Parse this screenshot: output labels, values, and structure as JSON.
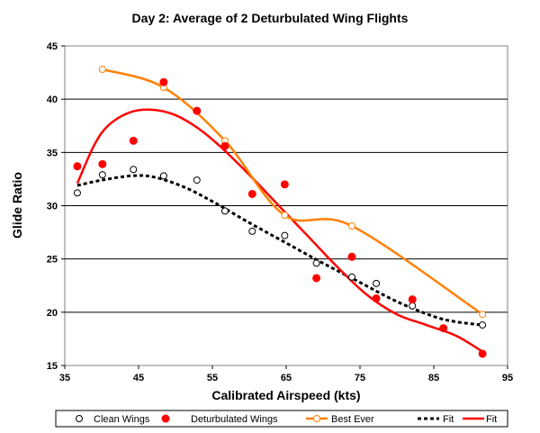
{
  "chart_data": {
    "type": "scatter",
    "title": "Day 2: Average of 2 Deturbulated Wing Flights",
    "xlabel": "Calibrated Airspeed (kts)",
    "ylabel": "Glide Ratio",
    "xlim": [
      35,
      95
    ],
    "ylim": [
      15,
      45
    ],
    "xticks": [
      35,
      45,
      55,
      65,
      75,
      85,
      95
    ],
    "yticks": [
      15,
      20,
      25,
      30,
      35,
      40,
      45
    ],
    "grid": "horizontal",
    "legend_position": "bottom",
    "series": [
      {
        "name": "Clean Wings",
        "kind": "markers",
        "marker": "open-circle",
        "color": "#000000",
        "points": [
          [
            36.7,
            31.2
          ],
          [
            40.1,
            32.9
          ],
          [
            44.3,
            33.4
          ],
          [
            48.4,
            32.8
          ],
          [
            52.9,
            32.4
          ],
          [
            56.7,
            29.5
          ],
          [
            60.4,
            27.6
          ],
          [
            64.8,
            27.2
          ],
          [
            69.1,
            24.6
          ],
          [
            73.9,
            23.3
          ],
          [
            77.2,
            22.7
          ],
          [
            82.1,
            20.6
          ],
          [
            91.6,
            18.8
          ]
        ]
      },
      {
        "name": "Deturbulated Wings",
        "kind": "markers",
        "marker": "filled-circle",
        "color": "#ff0000",
        "points": [
          [
            36.7,
            33.7
          ],
          [
            40.1,
            33.9
          ],
          [
            44.3,
            36.1
          ],
          [
            48.4,
            41.6
          ],
          [
            52.9,
            38.9
          ],
          [
            56.7,
            35.6
          ],
          [
            60.4,
            31.1
          ],
          [
            64.8,
            32.0
          ],
          [
            69.1,
            23.2
          ],
          [
            73.9,
            25.2
          ],
          [
            77.2,
            21.3
          ],
          [
            82.1,
            21.2
          ],
          [
            86.3,
            18.5
          ],
          [
            91.6,
            16.1
          ]
        ]
      },
      {
        "name": "Best Ever",
        "kind": "line-markers",
        "marker": "open-circle",
        "color": "#ff8000",
        "points": [
          [
            40.1,
            42.8
          ],
          [
            48.4,
            41.1
          ],
          [
            56.7,
            36.1
          ],
          [
            64.8,
            29.1
          ],
          [
            73.9,
            28.1
          ],
          [
            91.6,
            19.8
          ]
        ]
      },
      {
        "name": "Fit",
        "kind": "dashed-line",
        "color": "#000000",
        "points": [
          [
            36.7,
            31.9
          ],
          [
            40,
            32.4
          ],
          [
            44,
            32.8
          ],
          [
            47,
            32.7
          ],
          [
            51,
            31.8
          ],
          [
            55,
            30.4
          ],
          [
            60,
            28.4
          ],
          [
            65,
            26.5
          ],
          [
            70,
            24.6
          ],
          [
            75,
            22.8
          ],
          [
            80,
            21.0
          ],
          [
            85,
            19.6
          ],
          [
            88,
            19.1
          ],
          [
            91.6,
            18.8
          ]
        ]
      },
      {
        "name": "Fit",
        "kind": "line",
        "color": "#ff0000",
        "points": [
          [
            36.7,
            32.1
          ],
          [
            39,
            35.7
          ],
          [
            41,
            37.6
          ],
          [
            44,
            38.8
          ],
          [
            47,
            39.0
          ],
          [
            50,
            38.5
          ],
          [
            53,
            37.3
          ],
          [
            56,
            35.6
          ],
          [
            60,
            32.9
          ],
          [
            64,
            30.0
          ],
          [
            68,
            27.1
          ],
          [
            72,
            24.2
          ],
          [
            76,
            21.6
          ],
          [
            80,
            19.8
          ],
          [
            84,
            18.8
          ],
          [
            88,
            17.8
          ],
          [
            91.6,
            16.3
          ]
        ]
      }
    ]
  }
}
